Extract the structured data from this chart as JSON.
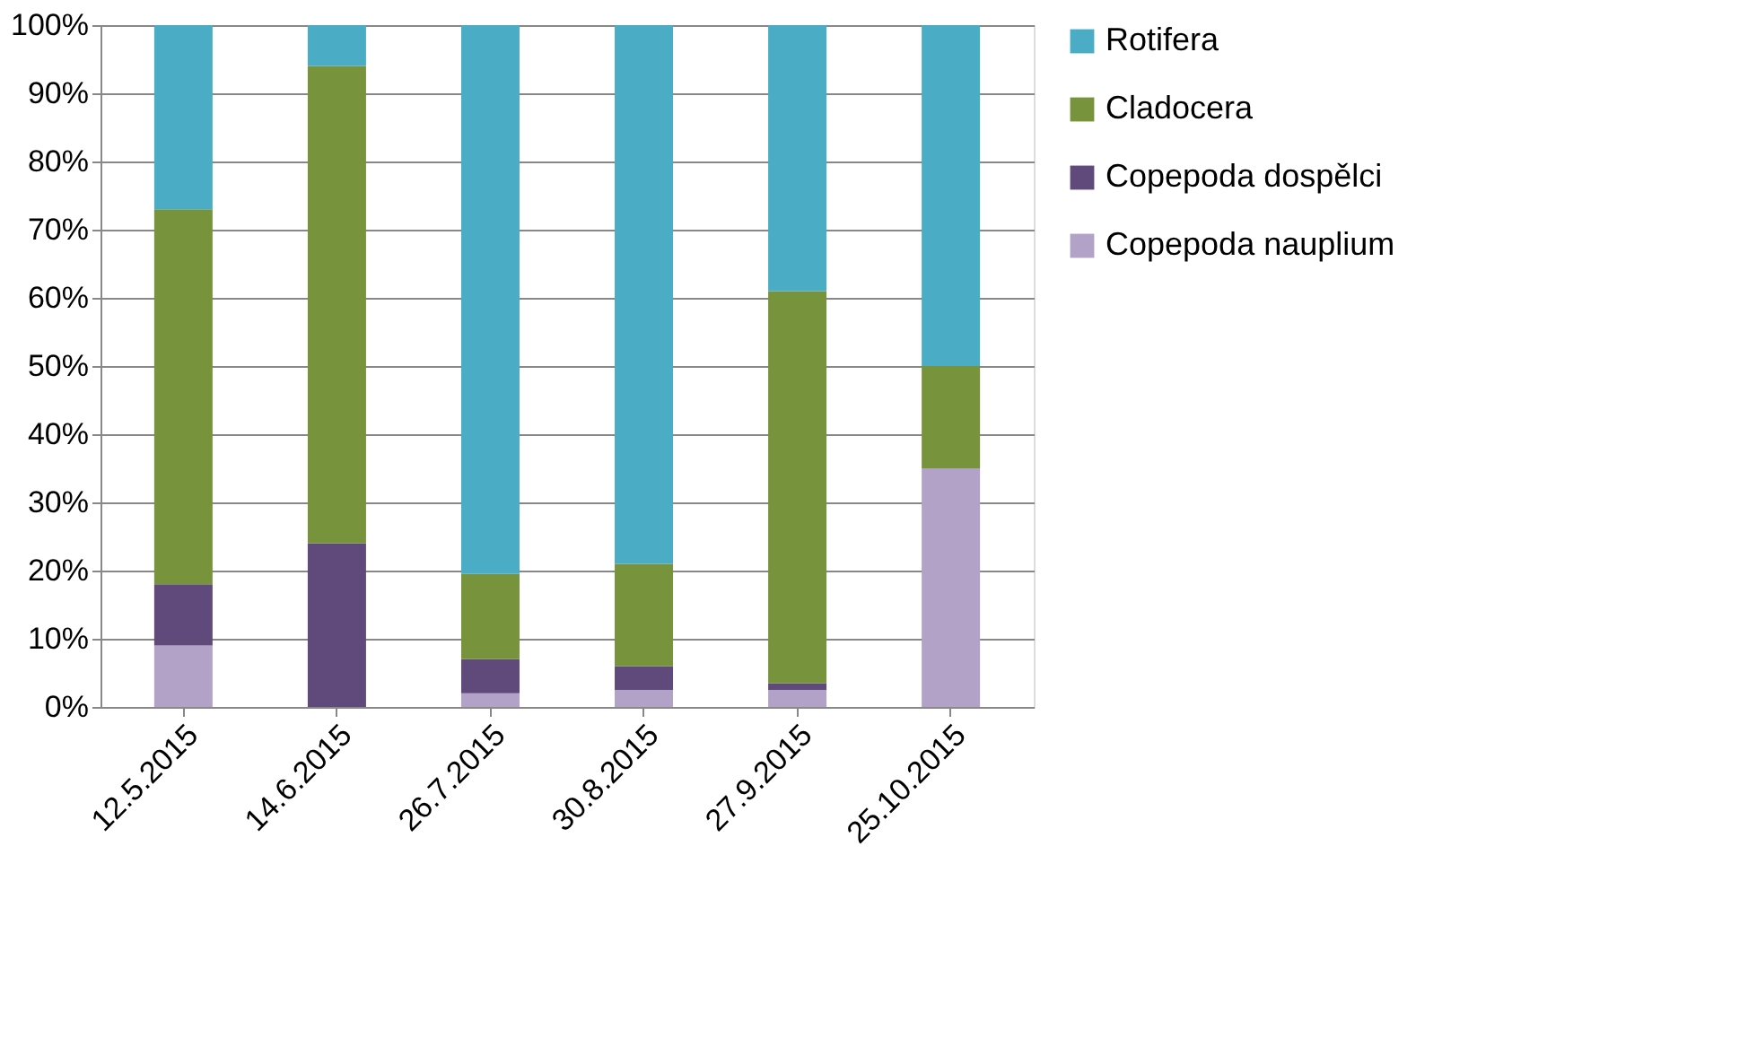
{
  "chart_data": {
    "type": "bar",
    "stacked": true,
    "categories": [
      "12.5.2015",
      "14.6.2015",
      "26.7.2015",
      "30.8.2015",
      "27.9.2015",
      "25.10.2015"
    ],
    "series": [
      {
        "name": "Copepoda nauplium",
        "color": "#b3a2c7",
        "values": [
          9,
          0,
          2,
          2.5,
          2.5,
          35
        ]
      },
      {
        "name": "Copepoda dospělci",
        "color": "#604a7b",
        "values": [
          9,
          24,
          5,
          3.5,
          1,
          0
        ]
      },
      {
        "name": "Cladocera",
        "color": "#77933c",
        "values": [
          55,
          70,
          12.5,
          15,
          57.5,
          15
        ]
      },
      {
        "name": "Rotifera",
        "color": "#4bacc6",
        "values": [
          27,
          6,
          80.5,
          79,
          39,
          50
        ]
      }
    ],
    "ylim": [
      0,
      100
    ],
    "yticks": [
      {
        "value": 0,
        "label": "0%"
      },
      {
        "value": 10,
        "label": "10%"
      },
      {
        "value": 20,
        "label": "20%"
      },
      {
        "value": 30,
        "label": "30%"
      },
      {
        "value": 40,
        "label": "40%"
      },
      {
        "value": 50,
        "label": "50%"
      },
      {
        "value": 60,
        "label": "60%"
      },
      {
        "value": 70,
        "label": "70%"
      },
      {
        "value": 80,
        "label": "80%"
      },
      {
        "value": 90,
        "label": "90%"
      },
      {
        "value": 100,
        "label": "100%"
      }
    ],
    "grid": "y",
    "legend": "right"
  }
}
